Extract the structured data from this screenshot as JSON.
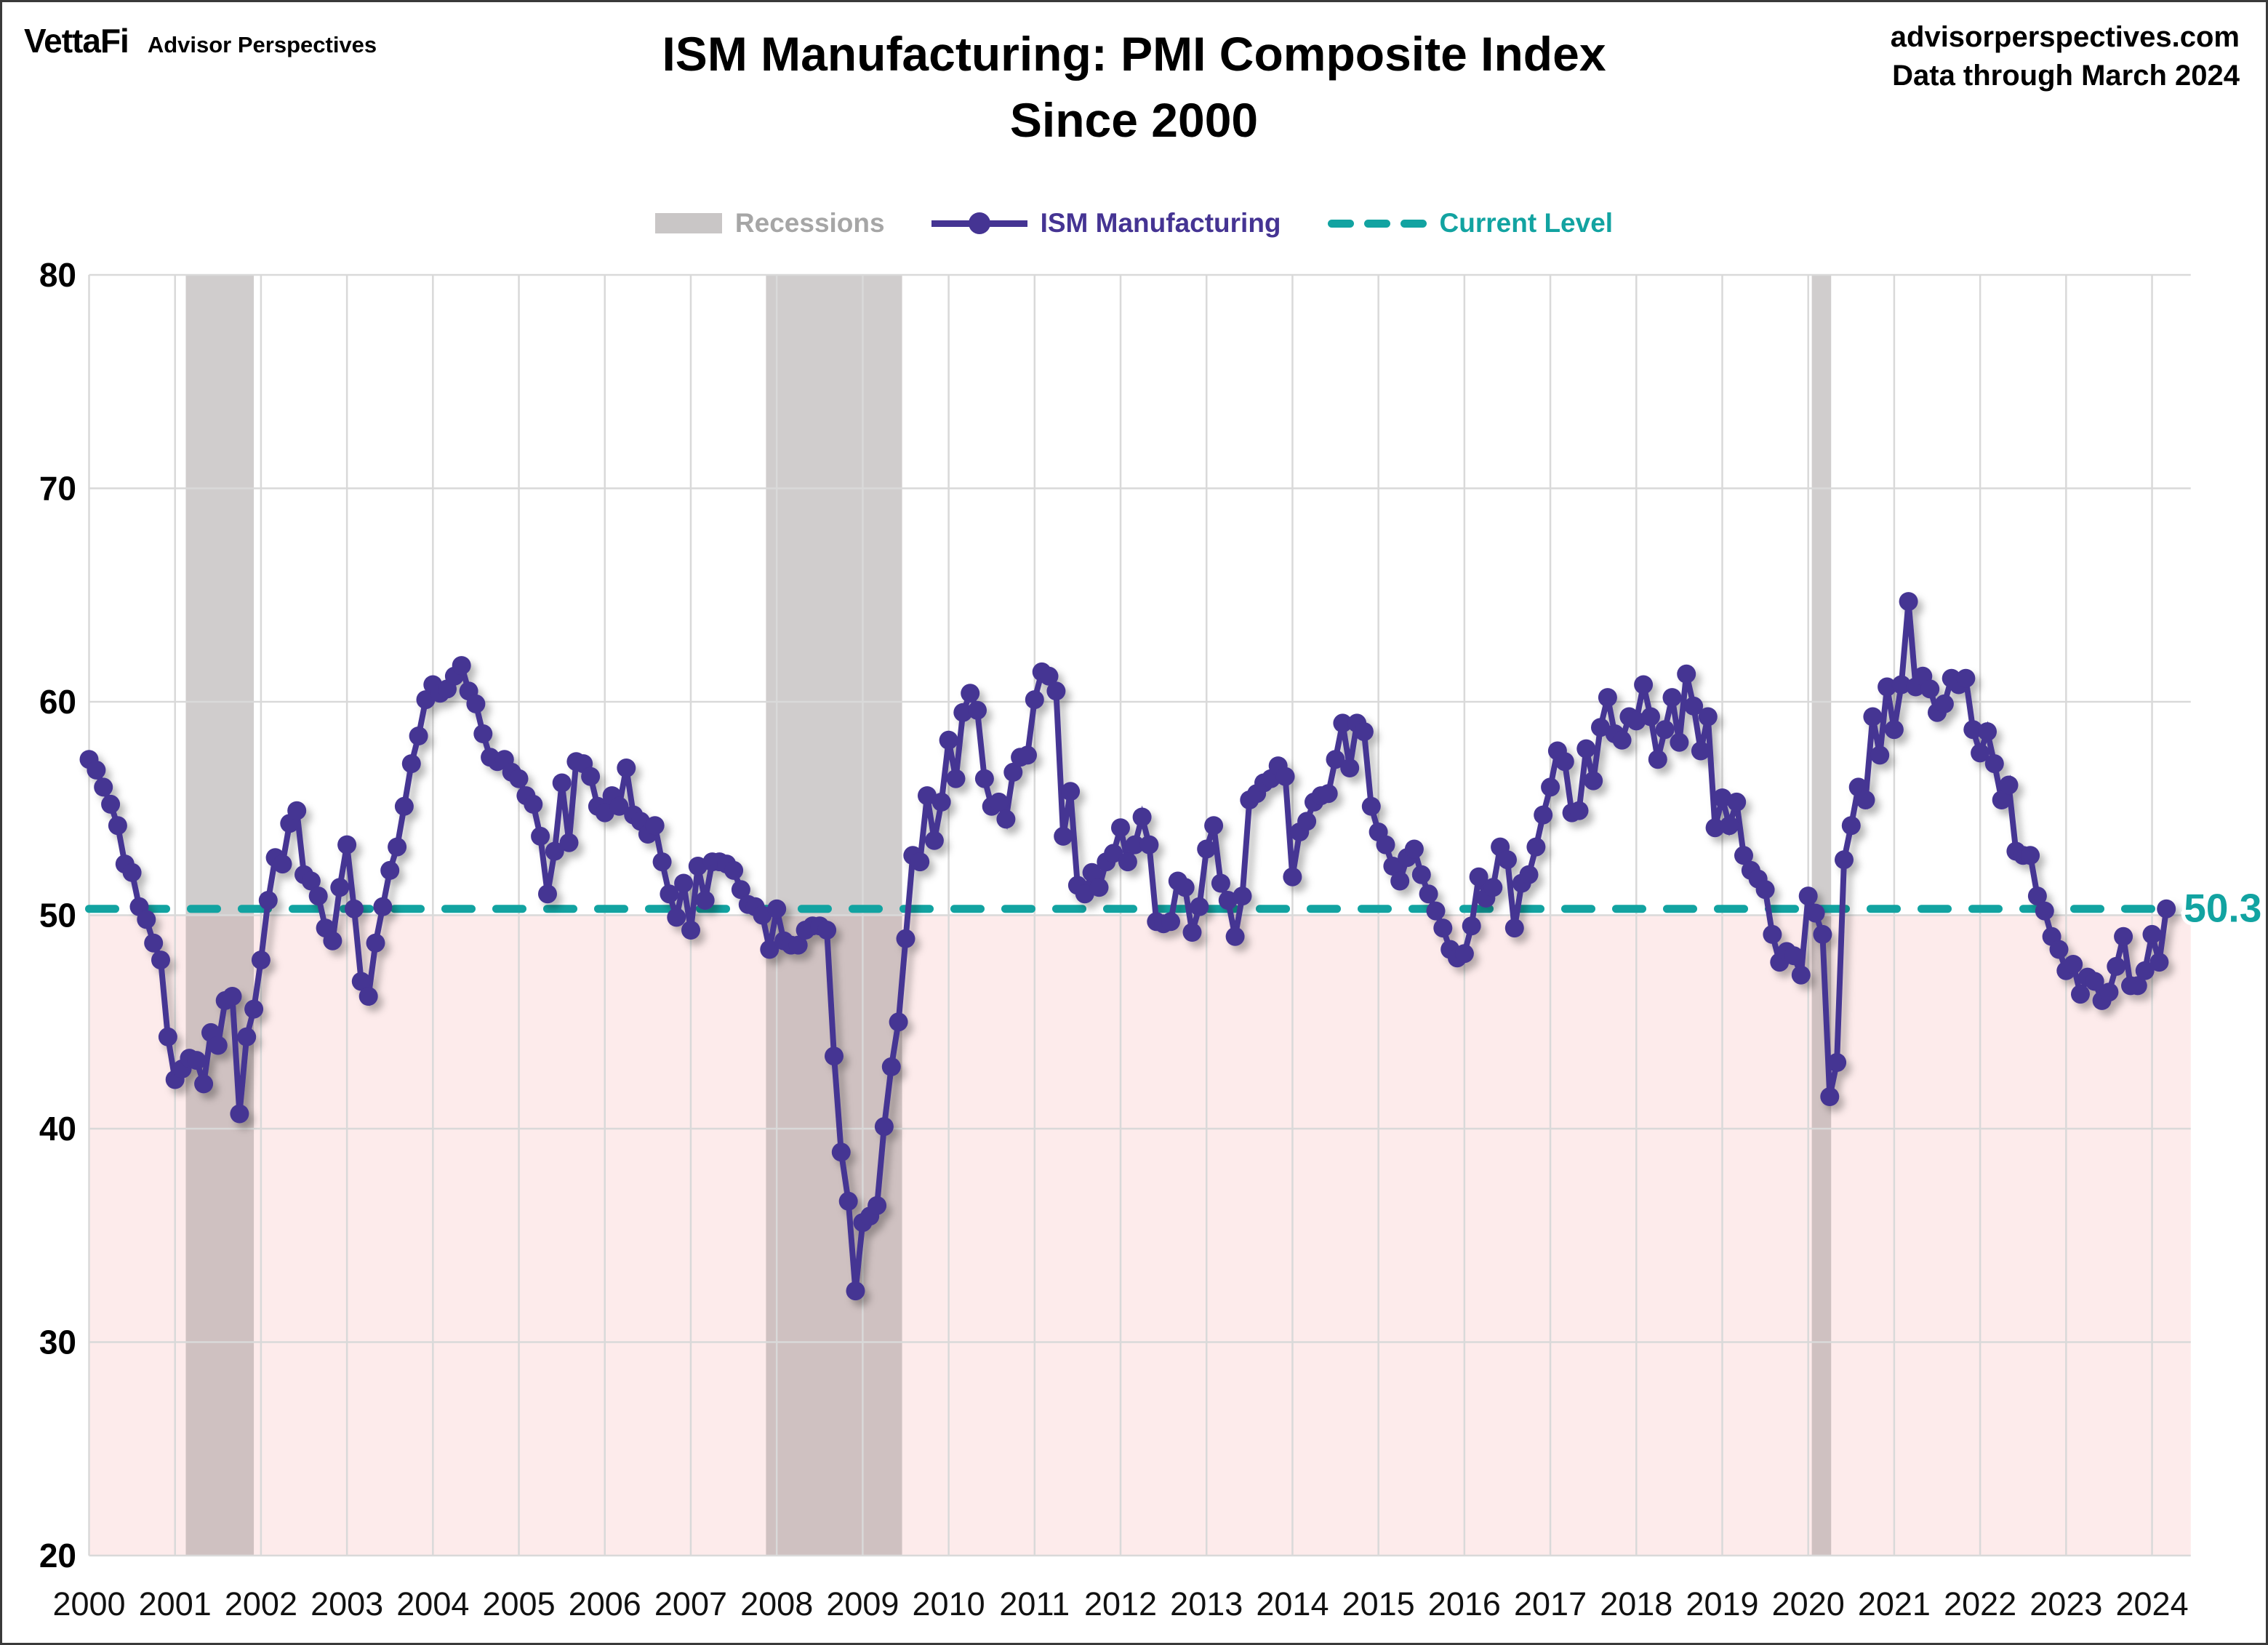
{
  "header": {
    "logo_primary": "VettaFi",
    "logo_secondary": "Advisor Perspectives",
    "title_line1": "ISM Manufacturing: PMI Composite Index",
    "title_line2": "Since 2000",
    "source_line1": "advisorperspectives.com",
    "source_line2": "Data through March 2024"
  },
  "legend": {
    "recessions_label": "Recessions",
    "series_label": "ISM Manufacturing",
    "current_level_label": "Current Level"
  },
  "colors": {
    "series_purple": "#453493",
    "current_teal": "#12a3a1",
    "below_50_pink": "#fdebeb",
    "recession_gray": "rgba(143,137,137,0.42)",
    "gridline_gray": "#d9d9d9",
    "legend_recession_text": "#a6a6a6",
    "legend_swatch_gray": "#c9c6c6",
    "axis_text": "#000000"
  },
  "chart_data": {
    "type": "line",
    "title": "ISM Manufacturing: PMI Composite Index Since 2000",
    "x_start": "2000-01",
    "x_end": "2024-03",
    "frequency": "monthly",
    "ylim": [
      20,
      80
    ],
    "y_ticks": [
      20,
      30,
      40,
      50,
      60,
      70,
      80
    ],
    "x_tick_labels": [
      "2000",
      "2001",
      "2002",
      "2003",
      "2004",
      "2005",
      "2006",
      "2007",
      "2008",
      "2009",
      "2010",
      "2011",
      "2012",
      "2013",
      "2014",
      "2015",
      "2016",
      "2017",
      "2018",
      "2019",
      "2020",
      "2021",
      "2022",
      "2023",
      "2024"
    ],
    "grid": true,
    "legend_position": "top",
    "current_level": 50.3,
    "current_level_label": "50.3",
    "recession_bands_month_index": [
      [
        13.5,
        23.0
      ],
      [
        94.5,
        113.5
      ],
      [
        240.5,
        243.2
      ]
    ],
    "series": [
      {
        "name": "ISM Manufacturing",
        "monthly_values": [
          57.3,
          56.8,
          56.0,
          55.2,
          54.2,
          52.4,
          52.0,
          50.4,
          49.8,
          48.7,
          47.9,
          44.3,
          42.3,
          42.8,
          43.3,
          43.2,
          42.1,
          44.5,
          43.9,
          46.0,
          46.2,
          40.7,
          44.3,
          45.6,
          47.9,
          50.7,
          52.7,
          52.4,
          54.3,
          54.9,
          51.9,
          51.6,
          50.9,
          49.4,
          48.8,
          51.3,
          53.3,
          50.3,
          46.9,
          46.2,
          48.7,
          50.4,
          52.1,
          53.2,
          55.1,
          57.1,
          58.4,
          60.1,
          60.8,
          60.4,
          60.6,
          61.2,
          61.7,
          60.5,
          59.9,
          58.5,
          57.4,
          57.2,
          57.3,
          56.7,
          56.4,
          55.6,
          55.2,
          53.7,
          51.0,
          53.0,
          56.2,
          53.4,
          57.2,
          57.1,
          56.5,
          55.1,
          54.8,
          55.6,
          55.1,
          56.9,
          54.7,
          54.4,
          53.8,
          54.2,
          52.5,
          51.0,
          49.9,
          51.5,
          49.3,
          52.3,
          50.7,
          52.5,
          52.5,
          52.4,
          52.1,
          51.2,
          50.5,
          50.4,
          50.0,
          48.4,
          50.3,
          48.8,
          48.6,
          48.6,
          49.3,
          49.5,
          49.5,
          49.3,
          43.4,
          38.9,
          36.6,
          32.4,
          35.6,
          35.9,
          36.4,
          40.1,
          42.9,
          45.0,
          48.9,
          52.8,
          52.5,
          55.6,
          53.5,
          55.3,
          58.2,
          56.4,
          59.5,
          60.4,
          59.6,
          56.4,
          55.1,
          55.3,
          54.5,
          56.7,
          57.4,
          57.5,
          60.1,
          61.4,
          61.2,
          60.5,
          53.7,
          55.8,
          51.4,
          51.0,
          52.0,
          51.3,
          52.5,
          52.9,
          54.1,
          52.5,
          53.3,
          54.6,
          53.3,
          49.7,
          49.6,
          49.7,
          51.6,
          51.3,
          49.2,
          50.4,
          53.1,
          54.2,
          51.5,
          50.7,
          49.0,
          50.9,
          55.4,
          55.7,
          56.2,
          56.4,
          57.0,
          56.5,
          51.8,
          53.9,
          54.4,
          55.3,
          55.6,
          55.7,
          57.3,
          59.0,
          56.9,
          59.0,
          58.6,
          55.1,
          53.9,
          53.3,
          52.3,
          51.6,
          52.7,
          53.1,
          51.9,
          51.0,
          50.2,
          49.4,
          48.4,
          48.0,
          48.2,
          49.5,
          51.8,
          50.8,
          51.3,
          53.2,
          52.6,
          49.4,
          51.5,
          51.9,
          53.2,
          54.7,
          56.0,
          57.7,
          57.2,
          54.8,
          54.9,
          57.8,
          56.3,
          58.8,
          60.2,
          58.5,
          58.2,
          59.3,
          59.1,
          60.8,
          59.3,
          57.3,
          58.7,
          60.2,
          58.1,
          61.3,
          59.8,
          57.7,
          59.3,
          54.1,
          55.5,
          54.2,
          55.3,
          52.8,
          52.1,
          51.7,
          51.2,
          49.1,
          47.8,
          48.3,
          48.1,
          47.2,
          50.9,
          50.1,
          49.1,
          41.5,
          43.1,
          52.6,
          54.2,
          56.0,
          55.4,
          59.3,
          57.5,
          60.7,
          58.7,
          60.8,
          64.7,
          60.7,
          61.2,
          60.6,
          59.5,
          59.9,
          61.1,
          60.8,
          61.1,
          58.7,
          57.6,
          58.6,
          57.1,
          55.4,
          56.1,
          53.0,
          52.8,
          52.8,
          50.9,
          50.2,
          49.0,
          48.4,
          47.4,
          47.7,
          46.3,
          47.1,
          46.9,
          46.0,
          46.4,
          47.6,
          49.0,
          46.7,
          46.7,
          47.4,
          49.1,
          47.8,
          50.3
        ]
      }
    ]
  }
}
